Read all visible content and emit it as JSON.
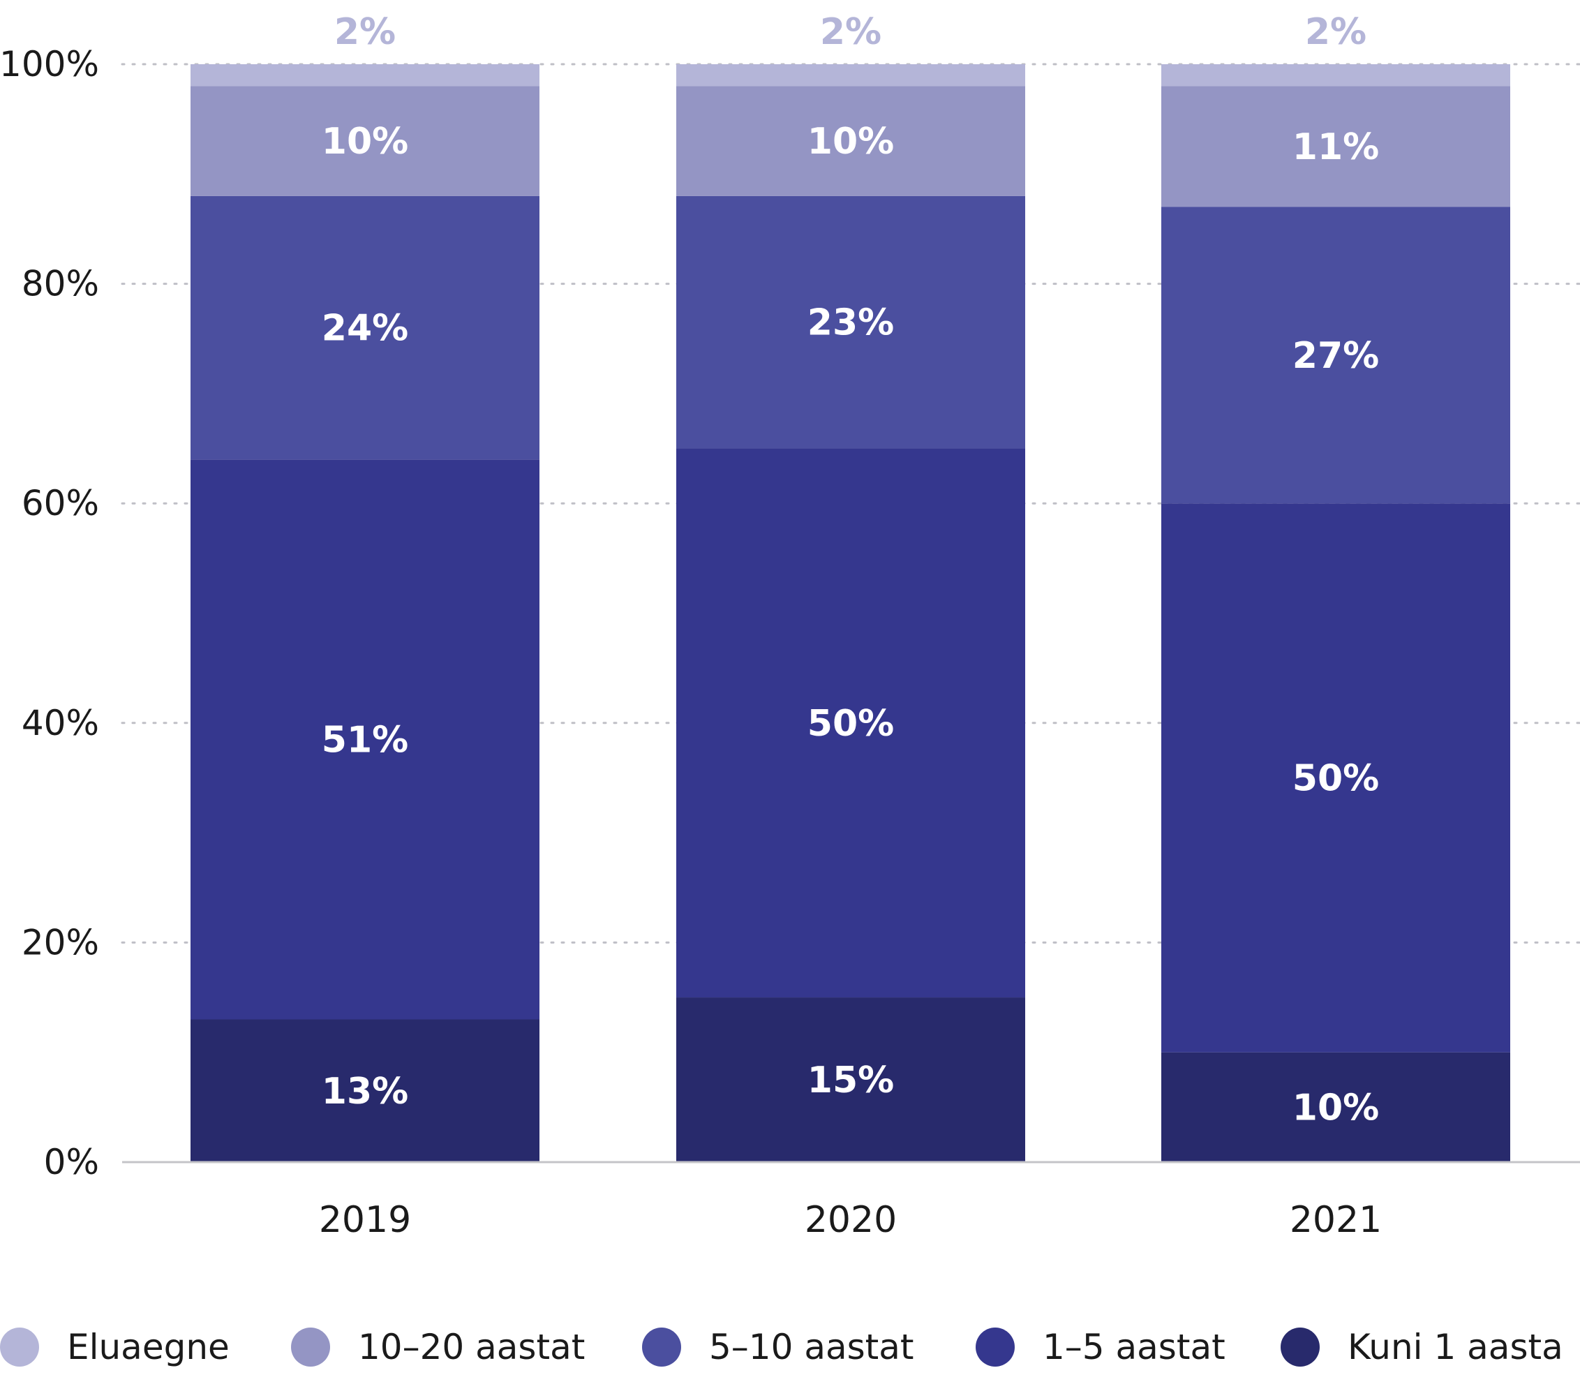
{
  "chart_data": {
    "type": "bar",
    "stacked": true,
    "categories": [
      "2019",
      "2020",
      "2021"
    ],
    "series": [
      {
        "name": "Kuni 1 aasta",
        "color": "#282a6c",
        "values": [
          13,
          15,
          10
        ],
        "labels": [
          "13%",
          "15%",
          "10%"
        ]
      },
      {
        "name": "1–5 aastat",
        "color": "#35378e",
        "values": [
          51,
          50,
          50
        ],
        "labels": [
          "51%",
          "50%",
          "50%"
        ]
      },
      {
        "name": "5–10 aastat",
        "color": "#4b4f9f",
        "values": [
          24,
          23,
          27
        ],
        "labels": [
          "24%",
          "23%",
          "27%"
        ]
      },
      {
        "name": "10–20 aastat",
        "color": "#9495c4",
        "values": [
          10,
          10,
          11
        ],
        "labels": [
          "10%",
          "10%",
          "11%"
        ]
      },
      {
        "name": "Eluaegne",
        "color": "#b4b5d8",
        "values": [
          2,
          2,
          2
        ],
        "labels": [
          "2%",
          "2%",
          "2%"
        ]
      }
    ],
    "ylim": [
      0,
      100
    ],
    "yticks": [
      "0%",
      "20%",
      "40%",
      "60%",
      "80%",
      "100%"
    ],
    "ytick_values": [
      0,
      20,
      40,
      60,
      80,
      100
    ],
    "grid": true,
    "legend_position": "bottom",
    "title": "",
    "xlabel": "",
    "ylabel": ""
  },
  "legend": [
    {
      "label": "Eluaegne",
      "color": "#b4b5d8"
    },
    {
      "label": "10–20 aastat",
      "color": "#9495c4"
    },
    {
      "label": "5–10 aastat",
      "color": "#4b4f9f"
    },
    {
      "label": "1–5 aastat",
      "color": "#35378e"
    },
    {
      "label": "Kuni 1 aasta",
      "color": "#282a6c"
    }
  ]
}
